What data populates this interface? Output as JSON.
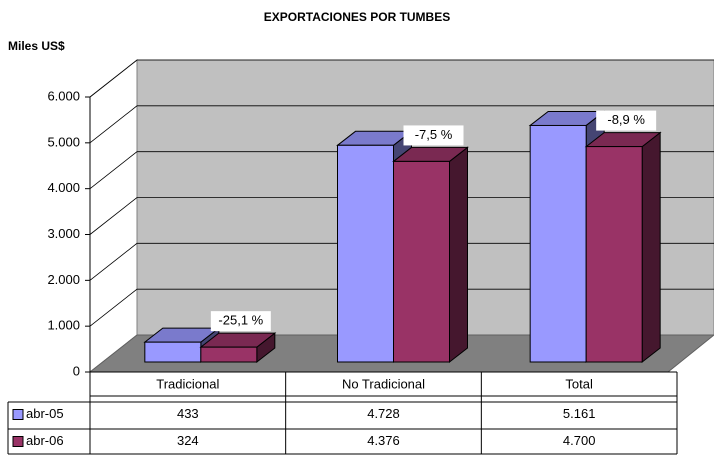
{
  "chart_data": {
    "type": "bar3d",
    "title": "EXPORTACIONES POR TUMBES",
    "y_label": "Miles US$",
    "categories": [
      "Tradicional",
      "No Tradicional",
      "Total"
    ],
    "series": [
      {
        "name": "abr-05",
        "color": "#9999ff",
        "values": [
          433,
          4728,
          5161
        ],
        "value_labels": [
          "433",
          "4.728",
          "5.161"
        ]
      },
      {
        "name": "abr-06",
        "color": "#993366",
        "values": [
          324,
          4376,
          4700
        ],
        "value_labels": [
          "324",
          "4.376",
          "4.700"
        ]
      }
    ],
    "annotations": [
      "-25,1 %",
      "-7,5 %",
      "-8,9 %"
    ],
    "ylim": [
      0,
      6000
    ],
    "yticks": [
      0,
      {
        "value": 1000,
        "label": "1.000"
      },
      {
        "value": 2000,
        "label": "2.000"
      },
      {
        "value": 3000,
        "label": "3.000"
      },
      {
        "value": 4000,
        "label": "4.000"
      },
      {
        "value": 5000,
        "label": "5.000"
      },
      {
        "value": 6000,
        "label": "6.000"
      }
    ],
    "grid": true
  }
}
